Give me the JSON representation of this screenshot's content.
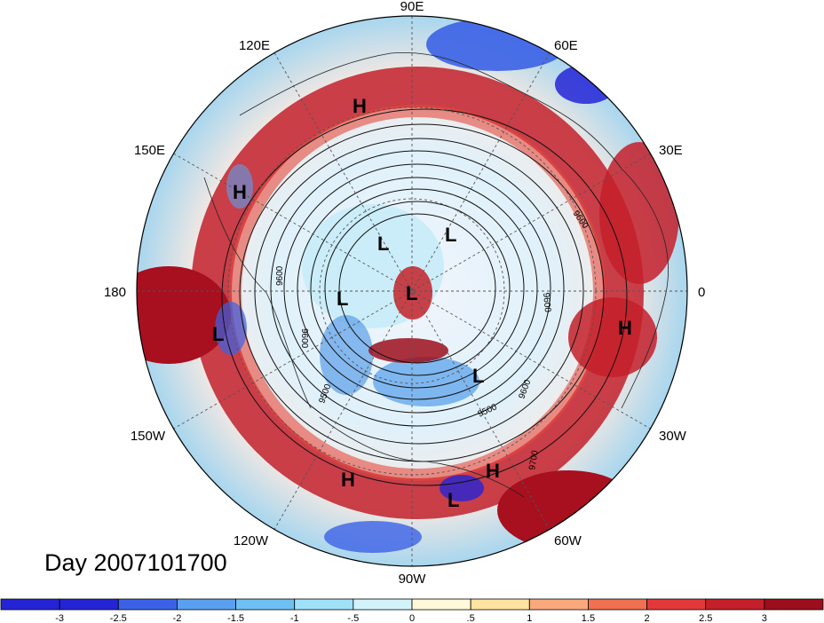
{
  "title": "Day 2007101700",
  "longitude_labels": [
    {
      "text": "90E",
      "pos": "top"
    },
    {
      "text": "60E",
      "pos": "upper-right"
    },
    {
      "text": "30E",
      "pos": "right-upper"
    },
    {
      "text": "0",
      "pos": "right"
    },
    {
      "text": "30W",
      "pos": "right-lower"
    },
    {
      "text": "60W",
      "pos": "lower-right"
    },
    {
      "text": "90W",
      "pos": "bottom"
    },
    {
      "text": "120W",
      "pos": "lower-left"
    },
    {
      "text": "150W",
      "pos": "left-lower"
    },
    {
      "text": "180",
      "pos": "left"
    },
    {
      "text": "150E",
      "pos": "left-upper"
    },
    {
      "text": "120E",
      "pos": "upper-left"
    }
  ],
  "pressure_centers": [
    {
      "label": "H",
      "where": "north-asia"
    },
    {
      "label": "H",
      "where": "east-siberia"
    },
    {
      "label": "L",
      "where": "north-pacific"
    },
    {
      "label": "L",
      "where": "alaska"
    },
    {
      "label": "L",
      "where": "arctic-siberia"
    },
    {
      "label": "L",
      "where": "arctic-pole"
    },
    {
      "label": "L",
      "where": "barents"
    },
    {
      "label": "H",
      "where": "africa"
    },
    {
      "label": "L",
      "where": "north-atlantic"
    },
    {
      "label": "H",
      "where": "mexico"
    },
    {
      "label": "H",
      "where": "caribbean"
    },
    {
      "label": "L",
      "where": "central-america"
    }
  ],
  "contour_labels": [
    "9600",
    "9600",
    "9500",
    "9600",
    "9600",
    "9500",
    "9700",
    "9600"
  ],
  "colorbar": {
    "tick_labels": [
      "-3",
      "-2.5",
      "-2",
      "-1.5",
      "-1",
      "-.5",
      "0",
      ".5",
      "1",
      "1.5",
      "2",
      "2.5",
      "3"
    ],
    "colors": [
      "#2424d6",
      "#3b62e6",
      "#5aa0f0",
      "#6fc0f2",
      "#9fe2f8",
      "#d3f3fa",
      "#fff8da",
      "#ffe3a0",
      "#f9a97c",
      "#f07052",
      "#e3383a",
      "#c41f2a",
      "#9d0e1c"
    ]
  }
}
